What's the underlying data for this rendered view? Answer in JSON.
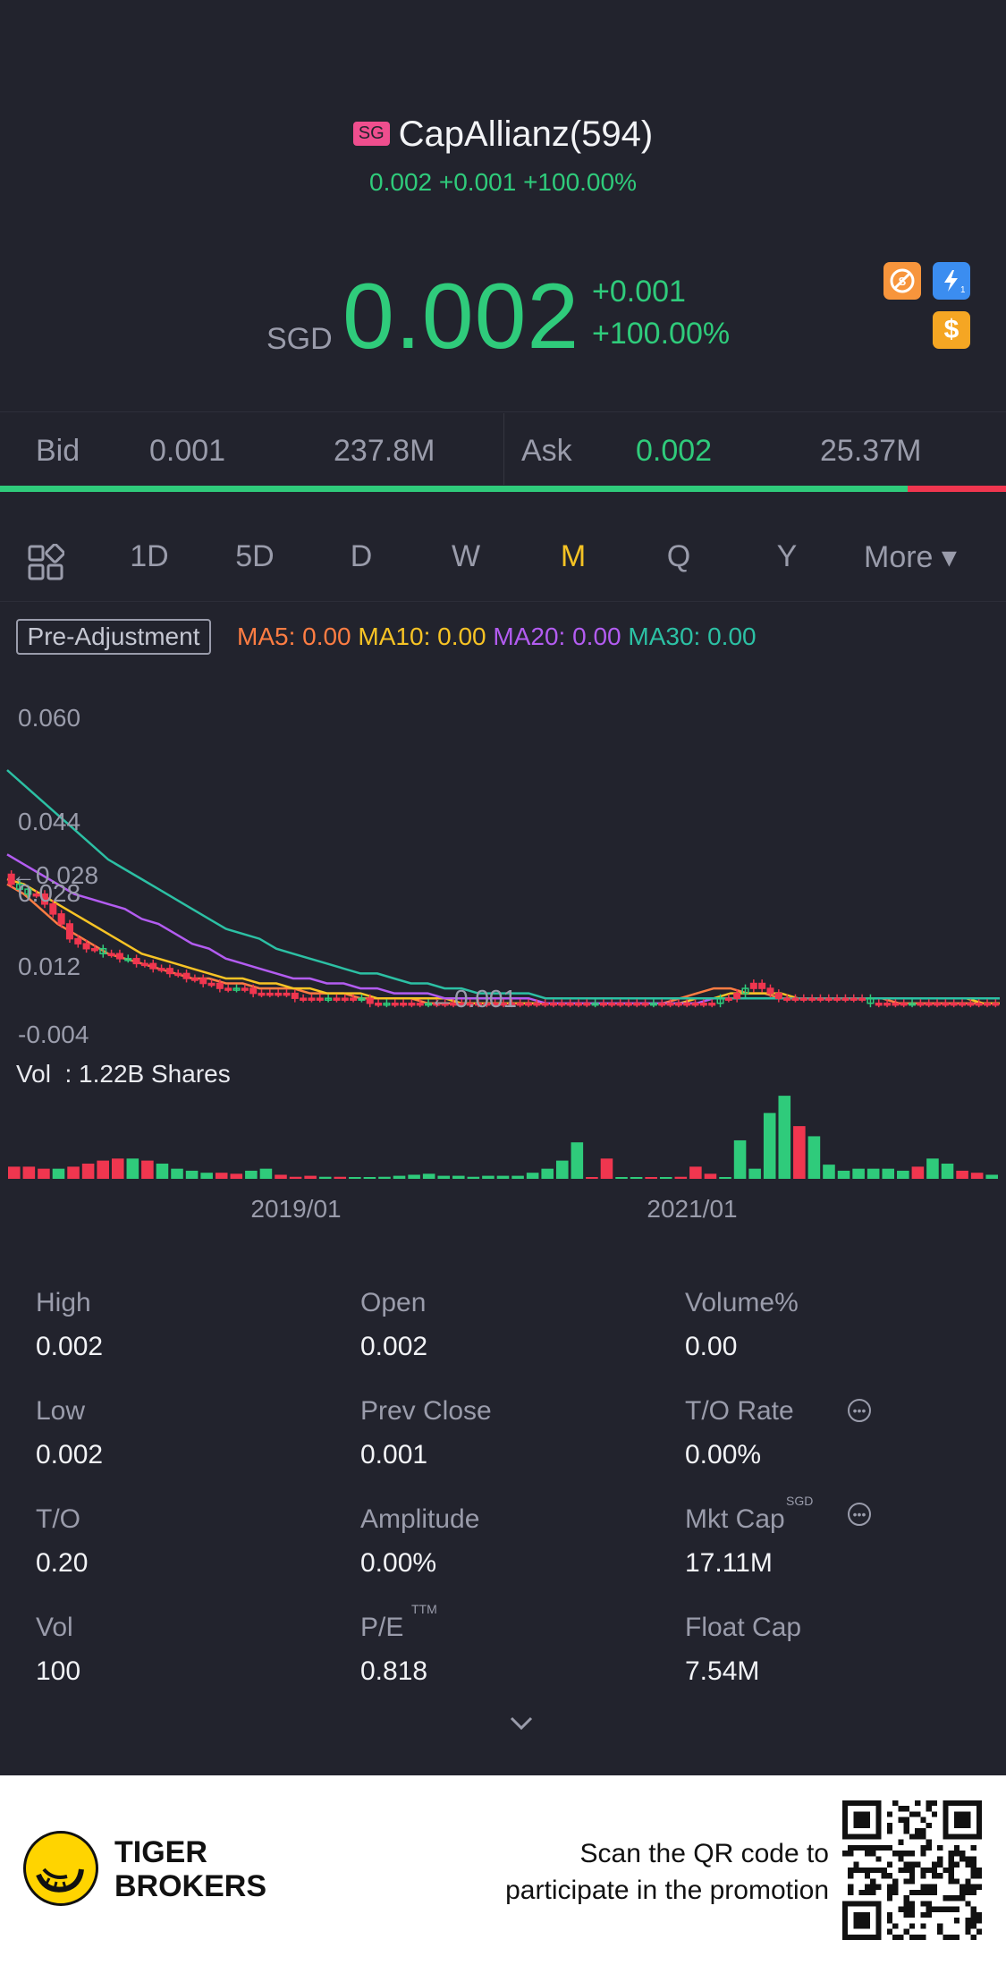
{
  "header": {
    "market_badge": "SG",
    "title": "CapAllianz(594)",
    "subtitle": "0.002 +0.001 +100.00%"
  },
  "price": {
    "currency": "SGD",
    "last": "0.002",
    "change": "+0.001",
    "change_pct": "+100.00%"
  },
  "quote_icons": [
    "no-short-icon",
    "flash-icon",
    "dollar-icon"
  ],
  "bid_ask": {
    "bid_label": "Bid",
    "bid_price": "0.001",
    "bid_size": "237.8M",
    "ask_label": "Ask",
    "ask_price": "0.002",
    "ask_size": "25.37M",
    "bid_share": 0.902
  },
  "periods": [
    "1D",
    "5D",
    "D",
    "W",
    "M",
    "Q",
    "Y",
    "More ▾"
  ],
  "active_period": "M",
  "indicators": {
    "adjust_label": "Pre-Adjustment",
    "ma5": "MA5: 0.00",
    "ma10": "MA10: 0.00",
    "ma20": "MA20: 0.00",
    "ma30": "MA30: 0.00"
  },
  "chart_data": {
    "type": "candlestick",
    "y_ticks": [
      "0.060",
      "0.044",
      "0.028",
      "0.012",
      "-0.004"
    ],
    "ylim": [
      -0.004,
      0.06
    ],
    "x_ticks": [
      "2019/01",
      "2021/01"
    ],
    "annotations": {
      "high_marker": "←0.028",
      "low_marker": "←0.001"
    },
    "volume_label": "Vol  : 1.22B Shares",
    "candles_close": [
      0.026,
      0.025,
      0.024,
      0.024,
      0.022,
      0.02,
      0.018,
      0.015,
      0.014,
      0.013,
      0.013,
      0.012,
      0.012,
      0.011,
      0.011,
      0.01,
      0.01,
      0.009,
      0.009,
      0.008,
      0.008,
      0.007,
      0.007,
      0.006,
      0.006,
      0.005,
      0.005,
      0.005,
      0.005,
      0.004,
      0.004,
      0.004,
      0.004,
      0.004,
      0.003,
      0.003,
      0.003,
      0.003,
      0.003,
      0.003,
      0.003,
      0.003,
      0.003,
      0.002,
      0.002,
      0.002,
      0.002,
      0.002,
      0.002,
      0.002,
      0.002,
      0.002,
      0.002,
      0.002,
      0.002,
      0.002,
      0.002,
      0.002,
      0.002,
      0.002,
      0.002,
      0.002,
      0.002,
      0.002,
      0.002,
      0.002,
      0.002,
      0.002,
      0.002,
      0.002,
      0.002,
      0.002,
      0.002,
      0.002,
      0.002,
      0.002,
      0.002,
      0.002,
      0.002,
      0.002,
      0.002,
      0.002,
      0.002,
      0.002,
      0.002,
      0.003,
      0.003,
      0.004,
      0.005,
      0.006,
      0.005,
      0.004,
      0.003,
      0.003,
      0.003,
      0.003,
      0.003,
      0.003,
      0.003,
      0.003,
      0.003,
      0.003,
      0.003,
      0.002,
      0.002,
      0.002,
      0.002,
      0.002,
      0.002,
      0.002,
      0.002,
      0.002,
      0.002,
      0.002,
      0.002,
      0.002,
      0.002,
      0.002,
      0.002
    ],
    "candles_up": [
      false,
      true,
      true,
      false,
      false,
      false,
      false,
      false,
      false,
      false,
      false,
      true,
      false,
      false,
      true,
      false,
      false,
      false,
      false,
      false,
      false,
      false,
      false,
      false,
      false,
      false,
      false,
      true,
      false,
      false,
      false,
      false,
      false,
      false,
      false,
      false,
      false,
      false,
      true,
      false,
      false,
      false,
      true,
      false,
      false,
      true,
      false,
      false,
      false,
      false,
      true,
      false,
      false,
      false,
      false,
      false,
      false,
      false,
      false,
      false,
      false,
      false,
      false,
      false,
      false,
      false,
      false,
      false,
      false,
      false,
      true,
      false,
      false,
      false,
      false,
      false,
      false,
      true,
      false,
      false,
      false,
      false,
      false,
      false,
      false,
      true,
      false,
      false,
      true,
      false,
      false,
      false,
      false,
      false,
      false,
      false,
      false,
      false,
      false,
      false,
      false,
      false,
      false,
      true,
      false,
      false,
      false,
      false,
      true,
      false,
      false,
      false,
      false,
      false,
      false,
      false,
      false,
      false
    ],
    "series": [
      {
        "name": "MA5",
        "color": "#ff7d43",
        "values": [
          0.026,
          0.024,
          0.021,
          0.018,
          0.016,
          0.014,
          0.012,
          0.011,
          0.01,
          0.009,
          0.008,
          0.007,
          0.007,
          0.006,
          0.006,
          0.005,
          0.005,
          0.005,
          0.004,
          0.004,
          0.004,
          0.003,
          0.003,
          0.003,
          0.003,
          0.002,
          0.002,
          0.002,
          0.002,
          0.002,
          0.002,
          0.002,
          0.002,
          0.002,
          0.002,
          0.002,
          0.002,
          0.002,
          0.002,
          0.002,
          0.003,
          0.004,
          0.005,
          0.005,
          0.004,
          0.004,
          0.003,
          0.003,
          0.003,
          0.003,
          0.003,
          0.003,
          0.003,
          0.002,
          0.002,
          0.002,
          0.002,
          0.002,
          0.002,
          0.002
        ]
      },
      {
        "name": "MA10",
        "color": "#f7c325",
        "values": [
          0.027,
          0.026,
          0.024,
          0.022,
          0.02,
          0.018,
          0.016,
          0.014,
          0.012,
          0.011,
          0.01,
          0.009,
          0.008,
          0.007,
          0.007,
          0.006,
          0.006,
          0.005,
          0.005,
          0.004,
          0.004,
          0.004,
          0.003,
          0.003,
          0.003,
          0.003,
          0.003,
          0.002,
          0.002,
          0.002,
          0.002,
          0.002,
          0.002,
          0.002,
          0.002,
          0.002,
          0.002,
          0.002,
          0.002,
          0.002,
          0.002,
          0.003,
          0.003,
          0.004,
          0.004,
          0.004,
          0.004,
          0.003,
          0.003,
          0.003,
          0.003,
          0.003,
          0.003,
          0.003,
          0.003,
          0.003,
          0.003,
          0.003,
          0.002,
          0.002
        ]
      },
      {
        "name": "MA20",
        "color": "#b35cf1",
        "values": [
          0.032,
          0.03,
          0.028,
          0.026,
          0.024,
          0.023,
          0.022,
          0.021,
          0.019,
          0.018,
          0.016,
          0.014,
          0.013,
          0.011,
          0.01,
          0.009,
          0.008,
          0.007,
          0.007,
          0.006,
          0.006,
          0.005,
          0.005,
          0.004,
          0.004,
          0.004,
          0.003,
          0.003,
          0.003,
          0.003,
          0.003,
          0.003,
          0.002,
          0.002,
          0.002,
          0.002,
          0.002,
          0.002,
          0.002,
          0.002,
          0.002,
          0.002,
          0.003,
          0.003,
          0.003,
          0.003,
          0.003,
          0.003,
          0.003,
          0.003,
          0.003,
          0.003,
          0.003,
          0.003,
          0.003,
          0.003,
          0.003,
          0.003,
          0.003,
          0.003
        ]
      },
      {
        "name": "MA30",
        "color": "#2cc0a4",
        "values": [
          0.049,
          0.046,
          0.043,
          0.04,
          0.037,
          0.034,
          0.031,
          0.029,
          0.027,
          0.025,
          0.023,
          0.021,
          0.019,
          0.017,
          0.016,
          0.015,
          0.013,
          0.012,
          0.011,
          0.01,
          0.009,
          0.008,
          0.008,
          0.007,
          0.006,
          0.006,
          0.005,
          0.005,
          0.004,
          0.004,
          0.004,
          0.004,
          0.003,
          0.003,
          0.003,
          0.003,
          0.003,
          0.003,
          0.003,
          0.003,
          0.003,
          0.003,
          0.003,
          0.003,
          0.003,
          0.003,
          0.003,
          0.003,
          0.003,
          0.003,
          0.003,
          0.003,
          0.003,
          0.003,
          0.003,
          0.003,
          0.003,
          0.003,
          0.003,
          0.003
        ]
      }
    ],
    "volume": [
      0.12,
      0.12,
      0.1,
      0.1,
      0.12,
      0.15,
      0.18,
      0.2,
      0.2,
      0.18,
      0.15,
      0.1,
      0.08,
      0.06,
      0.06,
      0.05,
      0.08,
      0.1,
      0.04,
      0.02,
      0.03,
      0.02,
      0.02,
      0.01,
      0.01,
      0.02,
      0.03,
      0.04,
      0.05,
      0.03,
      0.03,
      0.02,
      0.03,
      0.03,
      0.03,
      0.06,
      0.1,
      0.18,
      0.36,
      0.01,
      0.2,
      0.01,
      0.01,
      0.01,
      0.01,
      0.02,
      0.12,
      0.05,
      0.01,
      0.38,
      0.1,
      0.65,
      0.82,
      0.52,
      0.42,
      0.14,
      0.08,
      0.1,
      0.1,
      0.1,
      0.08,
      0.12,
      0.2,
      0.15,
      0.08,
      0.06,
      0.04
    ],
    "volume_up": [
      false,
      false,
      false,
      true,
      false,
      false,
      false,
      false,
      true,
      false,
      true,
      true,
      true,
      true,
      false,
      false,
      true,
      true,
      false,
      false,
      false,
      true,
      false,
      true,
      true,
      true,
      true,
      true,
      true,
      true,
      true,
      true,
      true,
      true,
      true,
      true,
      true,
      true,
      true,
      false,
      false,
      true,
      true,
      false,
      true,
      false,
      false,
      false,
      true,
      true,
      true,
      true,
      true,
      false,
      true,
      true,
      true,
      true,
      true,
      true,
      true,
      false,
      true,
      true,
      false,
      false,
      true
    ]
  },
  "stats": [
    {
      "label": "High",
      "value": "0.002"
    },
    {
      "label": "Open",
      "value": "0.002"
    },
    {
      "label": "Volume%",
      "value": "0.00"
    },
    {
      "label": "Low",
      "value": "0.002"
    },
    {
      "label": "Prev Close",
      "value": "0.001"
    },
    {
      "label": "T/O Rate",
      "value": "0.00%"
    },
    {
      "label": "T/O",
      "value": "0.20"
    },
    {
      "label": "Amplitude",
      "value": "0.00%"
    },
    {
      "label": "Mkt Cap",
      "value": "17.11M",
      "sup": "SGD"
    },
    {
      "label": "Vol",
      "value": "100"
    },
    {
      "label": "P/E",
      "value": "0.818",
      "sup": "TTM"
    },
    {
      "label": "Float Cap",
      "value": "7.54M"
    }
  ],
  "footer": {
    "brand_line1": "TIGER",
    "brand_line2": "BROKERS",
    "scan_line1": "Scan the QR code to",
    "scan_line2": "participate in the promotion"
  },
  "colors": {
    "up": "#2fcb7b",
    "down": "#f0364f",
    "accent": "#f5c324",
    "background": "#22232d"
  }
}
